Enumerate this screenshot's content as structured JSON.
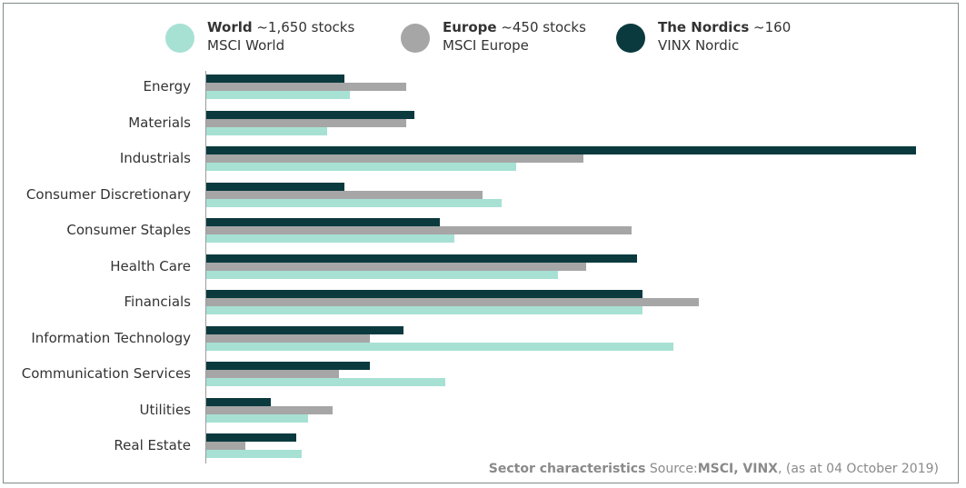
{
  "legend": [
    {
      "bold": "World",
      "rest": " ~1,650 stocks",
      "index": "MSCI World",
      "color": "#a7e1d4"
    },
    {
      "bold": "Europe",
      "rest": " ~450 stocks",
      "index": "MSCI Europe",
      "color": "#a6a6a6"
    },
    {
      "bold": "The Nordics",
      "rest": " ~160",
      "index": "VINX Nordic",
      "color": "#0a3a3e"
    }
  ],
  "chart_data": {
    "type": "bar",
    "orientation": "horizontal",
    "title": "Sector characteristics",
    "categories": [
      "Energy",
      "Materials",
      "Industrials",
      "Consumer Discretionary",
      "Consumer Staples",
      "Health Care",
      "Financials",
      "Information Technology",
      "Communication Services",
      "Utilities",
      "Real Estate"
    ],
    "series": [
      {
        "name": "The Nordics ~160 (VINX Nordic)",
        "color": "#0a3a3e",
        "values": [
          4.9,
          7.4,
          25.2,
          4.9,
          8.3,
          15.3,
          15.5,
          7.0,
          5.8,
          2.3,
          3.2
        ]
      },
      {
        "name": "Europe ~450 stocks (MSCI Europe)",
        "color": "#a6a6a6",
        "values": [
          7.1,
          7.1,
          13.4,
          9.8,
          15.1,
          13.5,
          17.5,
          5.8,
          4.7,
          4.5,
          1.4
        ]
      },
      {
        "name": "World ~1,650 stocks (MSCI World)",
        "color": "#a7e1d4",
        "values": [
          5.1,
          4.3,
          11.0,
          10.5,
          8.8,
          12.5,
          15.5,
          16.6,
          8.5,
          3.6,
          3.4
        ]
      }
    ],
    "xlim": [
      0,
      26
    ],
    "grid": false,
    "xlabel": "",
    "ylabel": ""
  },
  "source": {
    "title": "Sector characteristics",
    "prefix": "Source:",
    "source_name": "MSCI, VINX",
    "date": ", (as at 04 October 2019)"
  }
}
